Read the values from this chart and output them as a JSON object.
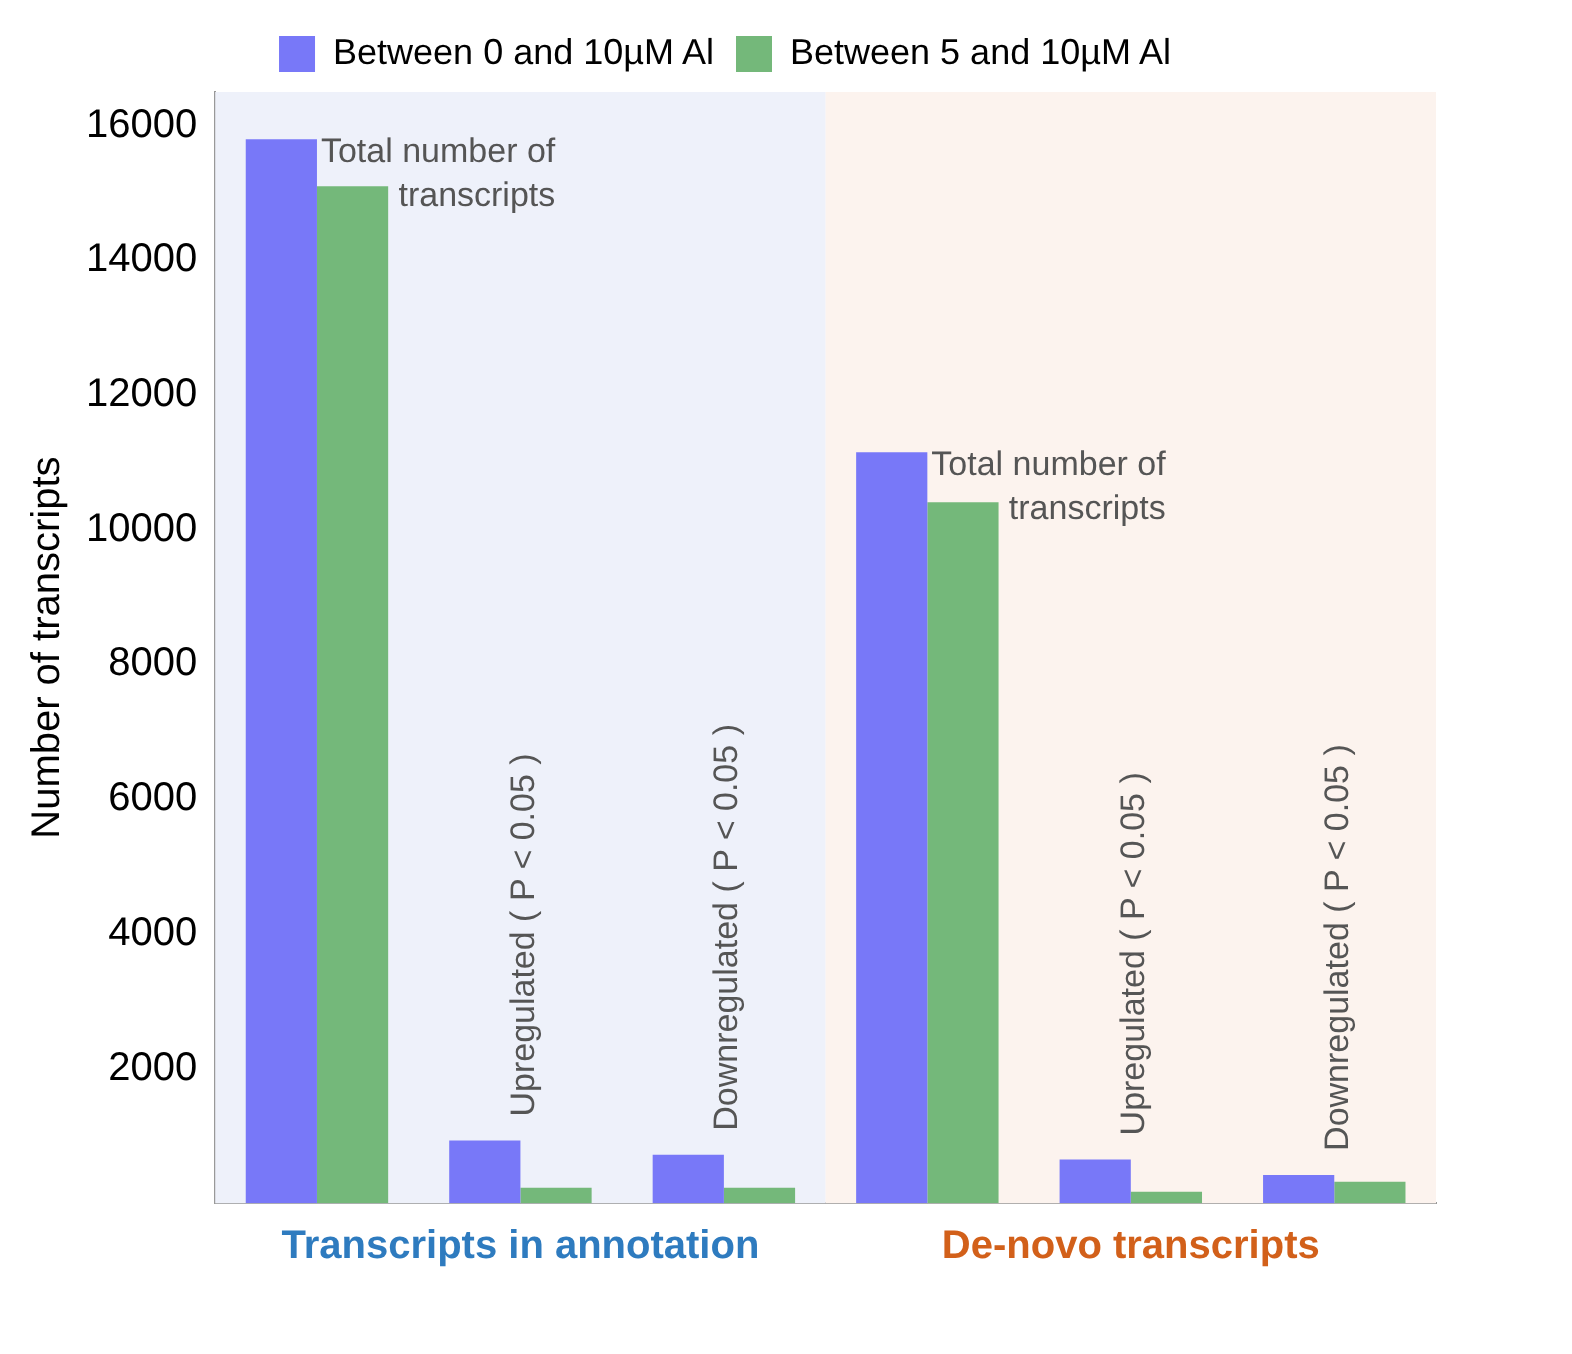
{
  "chart_data": {
    "type": "bar",
    "ylabel": "Number of transcripts",
    "categories": [
      null,
      null,
      null,
      null,
      null,
      null
    ],
    "series": [
      {
        "name": "Between 0 and 10µM Al",
        "color": "#7878f8",
        "values": [
          15800,
          930,
          720,
          11150,
          650,
          420
        ]
      },
      {
        "name": "Between 5 and 10µM Al",
        "color": "#74b87a",
        "values": [
          15100,
          230,
          230,
          10410,
          170,
          320
        ]
      }
    ],
    "ylim": [
      0,
      16500
    ],
    "yticks": [
      2000,
      4000,
      6000,
      8000,
      10000,
      12000,
      14000,
      16000
    ],
    "grid": false,
    "legend": "top",
    "annotations": [
      "Total number of transcripts",
      "Upregulated ( P < 0.05 )",
      "Downregulated ( P < 0.05 )",
      "Total number of transcripts",
      "Upregulated ( P < 0.05 )",
      "Downregulated ( P < 0.05 )",
      "Transcripts in annotation",
      "De-novo transcripts"
    ]
  }
}
